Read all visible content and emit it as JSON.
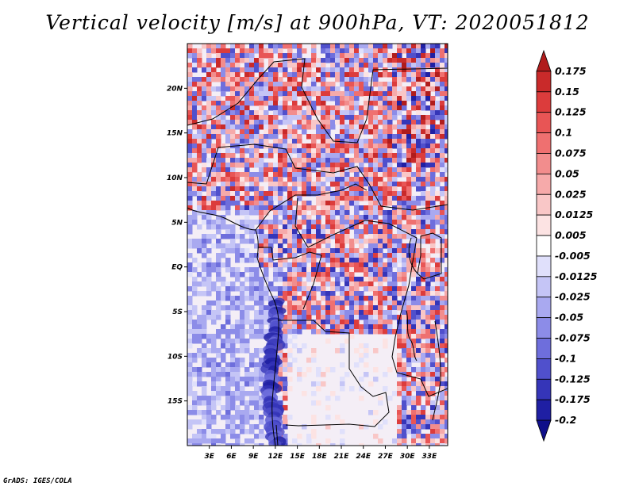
{
  "title": "Vertical velocity [m/s] at 900hPa, VT: 2020051812",
  "credit": "GrADS: IGES/COLA",
  "map": {
    "lon_range": [
      0,
      35.5
    ],
    "lat_range": [
      -20,
      25
    ],
    "lat_ticks": [
      {
        "lat": 20,
        "label": "20N"
      },
      {
        "lat": 15,
        "label": "15N"
      },
      {
        "lat": 10,
        "label": "10N"
      },
      {
        "lat": 5,
        "label": "5N"
      },
      {
        "lat": 0,
        "label": "EQ"
      },
      {
        "lat": -5,
        "label": "5S"
      },
      {
        "lat": -10,
        "label": "10S"
      },
      {
        "lat": -15,
        "label": "15S"
      }
    ],
    "lon_ticks": [
      {
        "lon": 3,
        "label": "3E"
      },
      {
        "lon": 6,
        "label": "6E"
      },
      {
        "lon": 9,
        "label": "9E"
      },
      {
        "lon": 12,
        "label": "12E"
      },
      {
        "lon": 15,
        "label": "15E"
      },
      {
        "lon": 18,
        "label": "18E"
      },
      {
        "lon": 21,
        "label": "21E"
      },
      {
        "lon": 24,
        "label": "24E"
      },
      {
        "lon": 27,
        "label": "27E"
      },
      {
        "lon": 30,
        "label": "30E"
      },
      {
        "lon": 33,
        "label": "33E"
      }
    ]
  },
  "colorbar": {
    "levels": [
      "0.175",
      "0.15",
      "0.125",
      "0.1",
      "0.075",
      "0.05",
      "0.025",
      "0.0125",
      "0.005",
      "-0.005",
      "-0.0125",
      "-0.025",
      "-0.05",
      "-0.075",
      "-0.1",
      "-0.125",
      "-0.175",
      "-0.2"
    ],
    "colors": [
      "#b01c1c",
      "#c92a2a",
      "#dc3c3c",
      "#e85555",
      "#ef7070",
      "#f28d8d",
      "#f6aaaa",
      "#f9c7c7",
      "#fce3e3",
      "#ffffff",
      "#e0e0fb",
      "#c5c5f6",
      "#a9a9f0",
      "#8c8ce8",
      "#6e6edc",
      "#5050cc",
      "#3535b8",
      "#1f1fa3",
      "#0f0f8a"
    ]
  }
}
